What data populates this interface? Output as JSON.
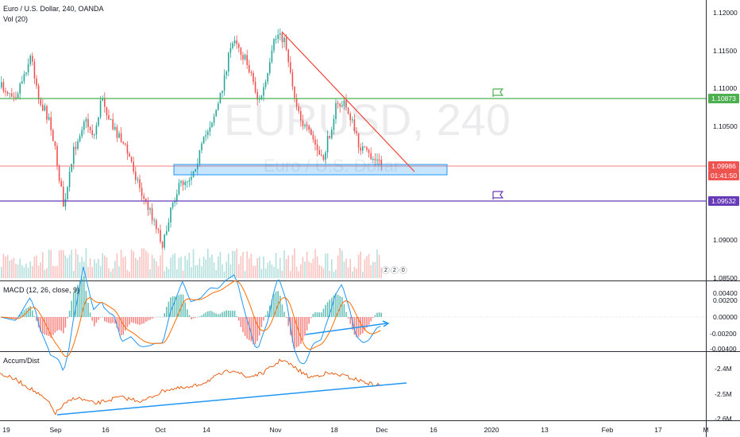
{
  "header": {
    "symbol_line": "Euro / U.S. Dollar, 240, OANDA",
    "volume_line": "Vol (20)"
  },
  "watermark": {
    "symbol": "EURUSD, 240",
    "description": "Euro / U.S. Dollar"
  },
  "price_axis": {
    "labels": [
      "1.12000",
      "1.11500",
      "1.11000",
      "1.10500",
      "1.09000",
      "1.08500"
    ]
  },
  "price_tags": {
    "green_level": "1.10873",
    "current_price": "1.09986",
    "countdown": "01:41:50",
    "purple_level": "1.09532"
  },
  "macd": {
    "label": "MACD (12, 26, close, 9)",
    "axis_labels": [
      "0.00400",
      "0.00200",
      "0.00000",
      "-0.00200",
      "-0.00400"
    ]
  },
  "accum": {
    "label": "Accum/Dist",
    "axis_labels": [
      "-2.4M",
      "-2.5M",
      "-2.6M"
    ]
  },
  "time_axis": {
    "labels": [
      "19",
      "Sep",
      "16",
      "Oct",
      "14",
      "Nov",
      "18",
      "Dec",
      "16",
      "2020",
      "13",
      "Feb",
      "17",
      "M"
    ]
  },
  "volume_badge": {
    "values": [
      "2",
      "2",
      "0"
    ]
  },
  "colors": {
    "up": "#26a69a",
    "down": "#ef5350",
    "green_line": "#4caf50",
    "purple_line": "#673ab7",
    "trend_red": "#f44336",
    "blue": "#2196f3"
  }
}
